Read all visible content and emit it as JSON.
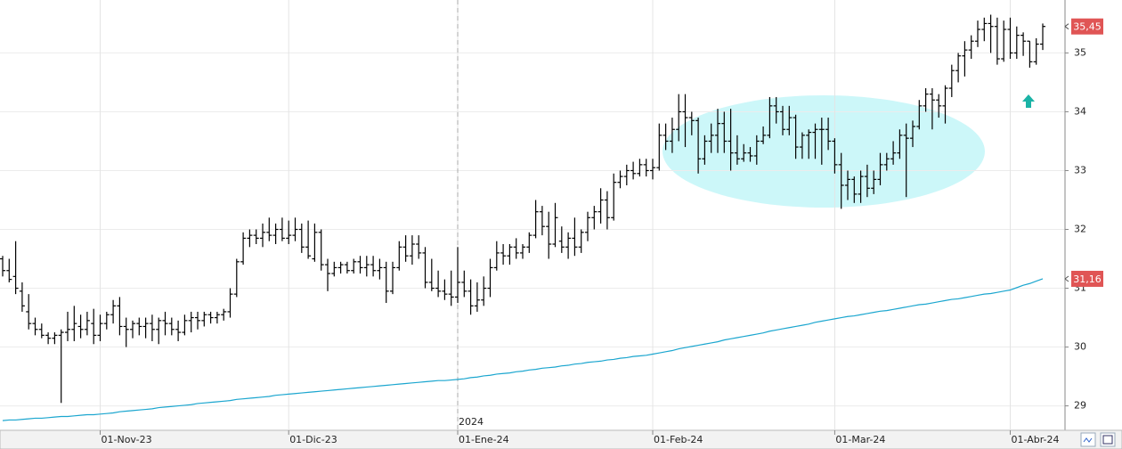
{
  "chart_data": {
    "type": "ohlc",
    "categories": [
      null,
      null,
      null,
      null,
      null,
      null,
      null,
      null,
      null,
      null,
      null,
      null,
      null,
      null,
      null,
      "01-Nov-23",
      null,
      null,
      null,
      null,
      null,
      null,
      null,
      null,
      null,
      null,
      null,
      null,
      null,
      null,
      null,
      null,
      null,
      null,
      null,
      null,
      null,
      null,
      null,
      null,
      null,
      null,
      null,
      null,
      "01-Dic-23",
      null,
      null,
      null,
      null,
      null,
      null,
      null,
      null,
      null,
      null,
      null,
      null,
      null,
      null,
      null,
      null,
      null,
      null,
      null,
      null,
      null,
      null,
      null,
      null,
      null,
      "01-Ene-24",
      null,
      null,
      null,
      null,
      null,
      null,
      null,
      null,
      null,
      null,
      null,
      null,
      null,
      null,
      null,
      null,
      null,
      null,
      null,
      null,
      null,
      null,
      null,
      null,
      null,
      null,
      null,
      null,
      null,
      "01-Feb-24",
      null,
      null,
      null,
      null,
      null,
      null,
      null,
      null,
      null,
      null,
      null,
      null,
      null,
      null,
      null,
      null,
      null,
      null,
      null,
      null,
      null,
      null,
      null,
      null,
      null,
      null,
      null,
      "01-Mar-24",
      null,
      null,
      null,
      null,
      null,
      null,
      null,
      null,
      null,
      null,
      null,
      null,
      null,
      null,
      null,
      null,
      null,
      null,
      null,
      null,
      null,
      null,
      null,
      null,
      null,
      null,
      "01-Abr-24",
      null,
      null,
      null,
      null,
      null
    ],
    "annotation": "2024",
    "annotation_index": 70,
    "ohlc": {
      "color": "#000000",
      "last_label": "35,45",
      "open": [
        31.5,
        31.3,
        31.2,
        30.95,
        30.6,
        30.4,
        30.3,
        30.2,
        30.15,
        30.2,
        30.25,
        30.3,
        30.35,
        30.3,
        30.4,
        30.2,
        30.4,
        30.55,
        30.7,
        30.35,
        30.3,
        30.4,
        30.35,
        30.4,
        30.3,
        30.45,
        30.4,
        30.3,
        30.25,
        30.45,
        30.5,
        30.45,
        30.55,
        30.5,
        30.55,
        30.6,
        30.9,
        31.45,
        31.85,
        31.9,
        31.85,
        31.95,
        31.9,
        32.0,
        31.85,
        31.9,
        32.0,
        31.7,
        31.5,
        31.95,
        31.4,
        31.25,
        31.35,
        31.4,
        31.3,
        31.45,
        31.35,
        31.4,
        31.3,
        31.35,
        30.95,
        31.35,
        31.7,
        31.55,
        31.75,
        31.6,
        31.1,
        31.0,
        30.95,
        30.9,
        30.85,
        31.1,
        30.95,
        30.7,
        30.8,
        31.0,
        31.35,
        31.6,
        31.55,
        31.7,
        31.6,
        31.7,
        31.9,
        32.3,
        32.05,
        31.75,
        31.8,
        31.7,
        31.85,
        31.7,
        31.95,
        32.2,
        32.3,
        32.5,
        32.2,
        32.8,
        32.9,
        33.0,
        32.95,
        33.1,
        33.0,
        33.05,
        33.6,
        33.5,
        33.7,
        34.0,
        33.9,
        33.85,
        33.2,
        33.5,
        33.6,
        33.8,
        33.5,
        33.3,
        33.2,
        33.3,
        33.25,
        33.5,
        33.6,
        34.1,
        34.0,
        33.7,
        33.9,
        33.4,
        33.6,
        33.65,
        33.7,
        33.7,
        33.5,
        33.1,
        32.75,
        32.85,
        32.6,
        32.9,
        32.7,
        32.85,
        33.1,
        33.2,
        33.3,
        33.6,
        33.55,
        33.75,
        34.1,
        34.3,
        34.2,
        34.1,
        34.4,
        34.7,
        34.95,
        35.05,
        35.2,
        35.4,
        35.5,
        35.45,
        34.9,
        35.4,
        35.0,
        35.3,
        35.2,
        34.85,
        35.15
      ],
      "high": [
        31.55,
        31.5,
        31.8,
        31.1,
        30.9,
        30.5,
        30.4,
        30.25,
        30.25,
        30.3,
        30.6,
        30.7,
        30.55,
        30.6,
        30.65,
        30.55,
        30.6,
        30.8,
        30.85,
        30.5,
        30.45,
        30.5,
        30.5,
        30.55,
        30.5,
        30.6,
        30.5,
        30.45,
        30.55,
        30.6,
        30.6,
        30.6,
        30.6,
        30.6,
        30.65,
        31.0,
        31.5,
        31.95,
        32.0,
        32.0,
        32.1,
        32.2,
        32.1,
        32.2,
        32.15,
        32.2,
        32.1,
        32.15,
        32.1,
        32.0,
        31.5,
        31.45,
        31.45,
        31.45,
        31.5,
        31.55,
        31.55,
        31.55,
        31.5,
        31.45,
        31.45,
        31.8,
        31.9,
        31.9,
        31.9,
        31.7,
        31.5,
        31.3,
        31.15,
        31.3,
        31.7,
        31.3,
        31.15,
        31.1,
        31.2,
        31.5,
        31.8,
        31.75,
        31.75,
        31.85,
        31.75,
        31.95,
        32.5,
        32.4,
        32.3,
        32.45,
        32.05,
        31.95,
        32.2,
        32.0,
        32.3,
        32.4,
        32.7,
        32.65,
        32.95,
        33.0,
        33.1,
        33.15,
        33.2,
        33.2,
        33.2,
        33.8,
        33.8,
        33.9,
        34.3,
        34.3,
        34.0,
        33.9,
        33.6,
        33.8,
        34.05,
        34.0,
        34.05,
        33.6,
        33.45,
        33.4,
        33.6,
        33.75,
        34.25,
        34.25,
        34.1,
        34.1,
        33.95,
        33.65,
        33.7,
        33.8,
        33.9,
        33.9,
        33.55,
        33.3,
        33.0,
        32.9,
        33.0,
        33.1,
        33.0,
        33.3,
        33.3,
        33.5,
        33.7,
        33.8,
        33.85,
        34.2,
        34.4,
        34.4,
        34.3,
        34.45,
        34.8,
        35.0,
        35.2,
        35.3,
        35.55,
        35.6,
        35.65,
        35.6,
        35.55,
        35.6,
        35.45,
        35.35,
        35.2,
        35.25,
        35.5
      ],
      "low": [
        31.2,
        31.1,
        30.9,
        30.6,
        30.3,
        30.2,
        30.15,
        30.05,
        30.05,
        29.05,
        30.1,
        30.1,
        30.15,
        30.2,
        30.05,
        30.1,
        30.3,
        30.4,
        30.2,
        30.0,
        30.15,
        30.2,
        30.15,
        30.1,
        30.05,
        30.2,
        30.2,
        30.1,
        30.2,
        30.25,
        30.3,
        30.35,
        30.4,
        30.4,
        30.45,
        30.5,
        30.85,
        31.4,
        31.7,
        31.75,
        31.7,
        31.8,
        31.75,
        31.8,
        31.75,
        31.8,
        31.6,
        31.5,
        31.45,
        31.3,
        30.95,
        31.2,
        31.25,
        31.25,
        31.25,
        31.25,
        31.2,
        31.2,
        31.15,
        30.75,
        30.9,
        31.3,
        31.45,
        31.4,
        31.5,
        31.0,
        30.95,
        30.85,
        30.8,
        30.7,
        30.75,
        30.85,
        30.55,
        30.6,
        30.7,
        30.85,
        31.3,
        31.4,
        31.4,
        31.5,
        31.5,
        31.6,
        31.85,
        31.9,
        31.5,
        31.7,
        31.6,
        31.5,
        31.55,
        31.6,
        31.8,
        32.0,
        32.1,
        32.0,
        32.15,
        32.7,
        32.75,
        32.85,
        32.9,
        32.9,
        32.85,
        33.0,
        33.35,
        33.3,
        33.5,
        33.4,
        33.6,
        32.95,
        33.1,
        33.3,
        33.3,
        33.3,
        33.0,
        33.1,
        33.15,
        33.15,
        33.1,
        33.45,
        33.55,
        33.8,
        33.6,
        33.6,
        33.2,
        33.2,
        33.2,
        33.2,
        33.1,
        33.35,
        32.95,
        32.35,
        32.5,
        32.45,
        32.45,
        32.55,
        32.6,
        32.75,
        33.0,
        33.1,
        33.2,
        32.55,
        33.4,
        33.7,
        34.0,
        33.7,
        33.9,
        33.8,
        34.25,
        34.5,
        34.6,
        34.9,
        35.1,
        35.2,
        35.0,
        34.8,
        34.85,
        34.9,
        34.9,
        34.95,
        34.75,
        34.8,
        35.05
      ],
      "close": [
        31.3,
        31.15,
        31.0,
        30.7,
        30.4,
        30.3,
        30.2,
        30.15,
        30.2,
        30.25,
        30.3,
        30.4,
        30.3,
        30.45,
        30.2,
        30.4,
        30.55,
        30.7,
        30.35,
        30.3,
        30.4,
        30.35,
        30.4,
        30.3,
        30.45,
        30.4,
        30.3,
        30.25,
        30.45,
        30.5,
        30.45,
        30.55,
        30.5,
        30.55,
        30.6,
        30.9,
        31.45,
        31.85,
        31.9,
        31.85,
        31.95,
        31.9,
        32.0,
        31.85,
        31.9,
        32.0,
        31.7,
        31.55,
        31.95,
        31.4,
        31.25,
        31.35,
        31.4,
        31.3,
        31.45,
        31.35,
        31.4,
        31.3,
        31.35,
        30.95,
        31.35,
        31.7,
        31.55,
        31.75,
        31.6,
        31.1,
        31.0,
        30.95,
        30.9,
        30.85,
        31.1,
        30.95,
        30.7,
        30.8,
        31.0,
        31.35,
        31.6,
        31.55,
        31.7,
        31.6,
        31.7,
        31.9,
        32.3,
        32.05,
        31.75,
        32.2,
        31.7,
        31.85,
        31.7,
        31.95,
        32.2,
        32.3,
        32.5,
        32.2,
        32.8,
        32.9,
        33.0,
        32.95,
        33.1,
        33.0,
        33.05,
        33.6,
        33.5,
        33.7,
        34.0,
        33.9,
        33.85,
        33.2,
        33.5,
        33.6,
        33.8,
        33.5,
        33.3,
        33.2,
        33.3,
        33.25,
        33.5,
        33.6,
        34.1,
        34.0,
        33.7,
        33.9,
        33.4,
        33.6,
        33.65,
        33.7,
        33.7,
        33.5,
        33.1,
        32.75,
        32.85,
        32.6,
        32.9,
        32.7,
        32.85,
        33.1,
        33.2,
        33.3,
        33.6,
        33.55,
        33.75,
        34.1,
        34.3,
        34.2,
        34.1,
        34.4,
        34.7,
        34.95,
        35.05,
        35.2,
        35.4,
        35.5,
        35.45,
        34.9,
        35.4,
        35.0,
        35.3,
        35.2,
        34.85,
        35.15,
        35.45
      ]
    },
    "ma": {
      "color": "#1ba6cf",
      "last_label": "31,16",
      "values": [
        28.75,
        28.76,
        28.76,
        28.77,
        28.78,
        28.79,
        28.79,
        28.8,
        28.81,
        28.82,
        28.82,
        28.83,
        28.84,
        28.85,
        28.85,
        28.86,
        28.87,
        28.88,
        28.9,
        28.91,
        28.92,
        28.93,
        28.94,
        28.95,
        28.97,
        28.98,
        28.99,
        29.0,
        29.01,
        29.02,
        29.04,
        29.05,
        29.06,
        29.07,
        29.08,
        29.09,
        29.11,
        29.12,
        29.13,
        29.14,
        29.15,
        29.16,
        29.18,
        29.19,
        29.2,
        29.21,
        29.22,
        29.23,
        29.24,
        29.25,
        29.26,
        29.27,
        29.28,
        29.29,
        29.3,
        29.31,
        29.32,
        29.33,
        29.34,
        29.35,
        29.36,
        29.37,
        29.38,
        29.39,
        29.4,
        29.41,
        29.42,
        29.43,
        29.43,
        29.44,
        29.45,
        29.46,
        29.48,
        29.49,
        29.51,
        29.52,
        29.54,
        29.55,
        29.56,
        29.58,
        29.59,
        29.61,
        29.62,
        29.64,
        29.65,
        29.66,
        29.68,
        29.69,
        29.71,
        29.72,
        29.74,
        29.75,
        29.76,
        29.78,
        29.79,
        29.81,
        29.82,
        29.84,
        29.85,
        29.86,
        29.88,
        29.9,
        29.92,
        29.94,
        29.97,
        29.99,
        30.01,
        30.03,
        30.05,
        30.07,
        30.09,
        30.12,
        30.14,
        30.16,
        30.18,
        30.2,
        30.22,
        30.24,
        30.27,
        30.29,
        30.31,
        30.33,
        30.35,
        30.37,
        30.39,
        30.42,
        30.44,
        30.46,
        30.48,
        30.5,
        30.52,
        30.53,
        30.55,
        30.57,
        30.59,
        30.61,
        30.62,
        30.64,
        30.66,
        30.68,
        30.7,
        30.72,
        30.73,
        30.75,
        30.77,
        30.79,
        30.81,
        30.82,
        30.84,
        30.86,
        30.88,
        30.9,
        30.91,
        30.93,
        30.95,
        30.97,
        31.01,
        31.05,
        31.08,
        31.12,
        31.16
      ]
    },
    "ylim": [
      28.6,
      35.9
    ],
    "yticks": [
      29,
      30,
      31,
      32,
      33,
      34,
      35
    ],
    "grid": true
  }
}
